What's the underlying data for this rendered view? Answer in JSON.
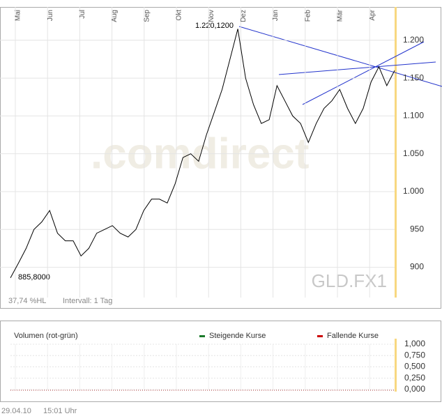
{
  "chart_data": [
    {
      "type": "line",
      "watermark": ".comdirect",
      "symbol": "GLD.FX1",
      "x_labels": [
        "Mai",
        "Jun",
        "Jul",
        "Aug",
        "Sep",
        "Okt",
        "Nov",
        "Dez",
        "Jan",
        "Feb",
        "Mär",
        "Apr"
      ],
      "series": [
        {
          "name": "GLD.FX1",
          "color": "#000000",
          "values": [
            886,
            905,
            925,
            950,
            960,
            975,
            945,
            935,
            935,
            915,
            925,
            945,
            950,
            955,
            945,
            940,
            950,
            975,
            990,
            990,
            985,
            1010,
            1045,
            1050,
            1040,
            1075,
            1105,
            1135,
            1175,
            1215,
            1150,
            1115,
            1090,
            1095,
            1140,
            1120,
            1100,
            1090,
            1065,
            1090,
            1110,
            1120,
            1135,
            1110,
            1090,
            1110,
            1145,
            1165,
            1140,
            1160
          ]
        }
      ],
      "ylim": [
        860,
        1244
      ],
      "yticks": [
        {
          "value": 1200,
          "label": "1.200"
        },
        {
          "value": 1150,
          "label": "1.150"
        },
        {
          "value": 1100,
          "label": "1.100"
        },
        {
          "value": 1050,
          "label": "1.050"
        },
        {
          "value": 1000,
          "label": "1.000"
        },
        950,
        900
      ],
      "grid": true,
      "annotations": [
        {
          "text": "1.220,1200"
        },
        {
          "text": "885,8000"
        }
      ],
      "range_label": "37,74 %HL",
      "interval_label": "Intervall: 1 Tag"
    },
    {
      "type": "volume",
      "title": "Volumen (rot-grün)",
      "series": [
        {
          "name": "Steigende Kurse",
          "color": "#1a7a2a",
          "values": []
        },
        {
          "name": "Fallende Kurse",
          "color": "#cc0000",
          "values": []
        }
      ],
      "ylim": [
        0,
        1
      ],
      "yticks": [
        {
          "value": 1,
          "label": "1,000"
        },
        {
          "value": 0.75,
          "label": "0,750"
        },
        {
          "value": 0.5,
          "label": "0,500"
        },
        {
          "value": 0.25,
          "label": "0,250"
        },
        {
          "value": 0,
          "label": "0,000"
        }
      ],
      "grid": true
    }
  ],
  "date": "29.04.10",
  "time": "15:01 Uhr"
}
